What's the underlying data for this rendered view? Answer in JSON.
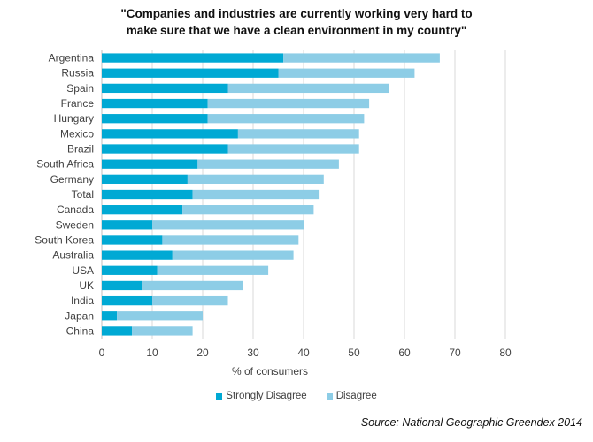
{
  "chart_data": {
    "type": "bar",
    "orientation": "horizontal",
    "stacked": true,
    "title_lines": [
      "\"Companies and industries are currently working very hard to",
      "make sure that we have a clean environment in my country\""
    ],
    "xlabel": "% of consumers",
    "ylabel": "",
    "xlim": [
      0,
      80
    ],
    "xticks": [
      0,
      10,
      20,
      30,
      40,
      50,
      60,
      70,
      80
    ],
    "grid": true,
    "legend_position": "bottom",
    "categories": [
      "Argentina",
      "Russia",
      "Spain",
      "France",
      "Hungary",
      "Mexico",
      "Brazil",
      "South Africa",
      "Germany",
      "Total",
      "Canada",
      "Sweden",
      "South Korea",
      "Australia",
      "USA",
      "UK",
      "India",
      "Japan",
      "China"
    ],
    "series": [
      {
        "name": "Strongly Disagree",
        "color": "#00A9D4",
        "values": [
          36,
          35,
          25,
          21,
          21,
          27,
          25,
          19,
          17,
          18,
          16,
          10,
          12,
          14,
          11,
          8,
          10,
          3,
          6
        ]
      },
      {
        "name": "Disagree",
        "color": "#8DCDE6",
        "values": [
          31,
          27,
          32,
          32,
          31,
          24,
          26,
          28,
          27,
          25,
          26,
          30,
          27,
          24,
          22,
          20,
          15,
          17,
          12
        ]
      }
    ],
    "source": "Source: National Geographic Greendex 2014"
  }
}
